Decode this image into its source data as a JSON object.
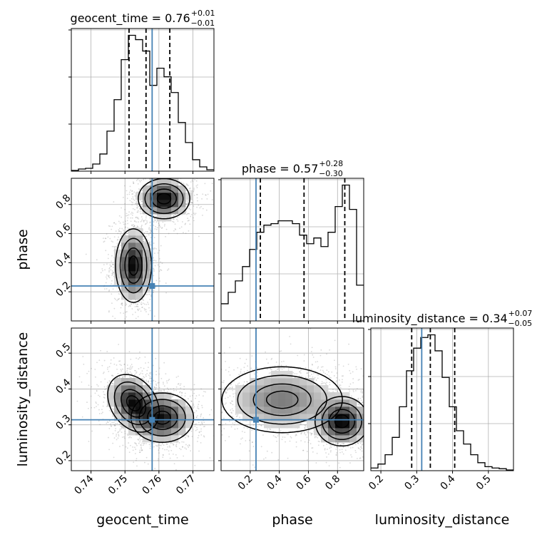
{
  "chart_data": {
    "type": "corner",
    "parameters": [
      {
        "name": "geocent_time",
        "truth": 0.758,
        "range": [
          0.7342,
          0.7762
        ],
        "ticks": [
          0.74,
          0.75,
          0.76,
          0.77
        ],
        "tick_labels": [
          "0.74",
          "0.75",
          "0.76",
          "0.77"
        ],
        "quantiles": [
          0.7512,
          0.7562,
          0.7632
        ],
        "title": {
          "name_text": "geocent_time = ",
          "median_text": "0.76",
          "plus_text": "+0.01",
          "minus_text": "−0.01"
        },
        "hist": {
          "edges": [
            0.7342,
            0.7363,
            0.7384,
            0.7405,
            0.7426,
            0.7447,
            0.7468,
            0.7489,
            0.751,
            0.7531,
            0.7552,
            0.7573,
            0.7594,
            0.7615,
            0.7636,
            0.7657,
            0.7678,
            0.7699,
            0.772,
            0.7741,
            0.7762
          ],
          "counts": [
            0.5,
            1.5,
            2,
            5,
            12,
            28,
            50,
            78,
            95,
            92,
            84,
            60,
            72,
            66,
            55,
            34,
            20,
            8,
            3,
            1
          ]
        }
      },
      {
        "name": "phase",
        "truth": 0.24,
        "range": [
          0.0,
          0.98
        ],
        "ticks": [
          0.2,
          0.4,
          0.6,
          0.8
        ],
        "tick_labels": [
          "0.2",
          "0.4",
          "0.6",
          "0.8"
        ],
        "quantiles": [
          0.27,
          0.57,
          0.85
        ],
        "title": {
          "name_text": "phase = ",
          "median_text": "0.57",
          "plus_text": "+0.28",
          "minus_text": "−0.30"
        },
        "hist": {
          "edges": [
            0.0,
            0.049,
            0.098,
            0.147,
            0.196,
            0.245,
            0.294,
            0.343,
            0.392,
            0.441,
            0.49,
            0.539,
            0.588,
            0.637,
            0.686,
            0.735,
            0.784,
            0.833,
            0.882,
            0.931,
            0.98
          ],
          "counts": [
            12,
            20,
            28,
            38,
            50,
            62,
            67,
            68,
            70,
            70,
            68,
            60,
            54,
            58,
            52,
            62,
            80,
            95,
            78,
            25
          ]
        }
      },
      {
        "name": "luminosity_distance",
        "truth": 0.314,
        "range": [
          0.172,
          0.57
        ],
        "ticks": [
          0.2,
          0.3,
          0.4,
          0.5
        ],
        "tick_labels": [
          "0.2",
          "0.3",
          "0.4",
          "0.5"
        ],
        "quantiles": [
          0.286,
          0.338,
          0.406
        ],
        "title": {
          "name_text": "luminosity_distance = ",
          "median_text": "0.34",
          "plus_text": "+0.07",
          "minus_text": "−0.05"
        },
        "hist": {
          "edges": [
            0.172,
            0.1919,
            0.2118,
            0.2317,
            0.2516,
            0.2715,
            0.2914,
            0.3113,
            0.3312,
            0.3511,
            0.371,
            0.3909,
            0.4108,
            0.4307,
            0.4506,
            0.4705,
            0.4904,
            0.5103,
            0.5302,
            0.5501,
            0.57
          ],
          "counts": [
            2,
            5,
            12,
            25,
            48,
            75,
            92,
            100,
            102,
            90,
            70,
            48,
            30,
            20,
            12,
            6,
            3,
            2,
            1.5,
            0.5
          ]
        }
      }
    ],
    "pairs": [
      {
        "x": 0,
        "y": 1,
        "clusters": [
          {
            "cx": 0.7525,
            "cy": 0.38,
            "sx": 0.0023,
            "sy": 0.11,
            "w": 0.55,
            "rho": 0.0
          },
          {
            "cx": 0.7615,
            "cy": 0.84,
            "sx": 0.0033,
            "sy": 0.06,
            "w": 0.45,
            "rho": 0.0
          }
        ]
      },
      {
        "x": 0,
        "y": 2,
        "clusters": [
          {
            "cx": 0.7525,
            "cy": 0.36,
            "sx": 0.0033,
            "sy": 0.035,
            "w": 0.5,
            "rho": -0.3
          },
          {
            "cx": 0.761,
            "cy": 0.32,
            "sx": 0.004,
            "sy": 0.03,
            "w": 0.5,
            "rho": 0.0
          }
        ]
      },
      {
        "x": 1,
        "y": 2,
        "clusters": [
          {
            "cx": 0.42,
            "cy": 0.37,
            "sx": 0.18,
            "sy": 0.04,
            "w": 0.55,
            "rho": 0.0
          },
          {
            "cx": 0.83,
            "cy": 0.31,
            "sx": 0.08,
            "sy": 0.03,
            "w": 0.45,
            "rho": 0.0
          }
        ]
      }
    ],
    "colors": {
      "line": "#000000",
      "truth": "#4682b4",
      "grid": "#b0b0b0",
      "points": "#777777"
    },
    "grid": true
  }
}
